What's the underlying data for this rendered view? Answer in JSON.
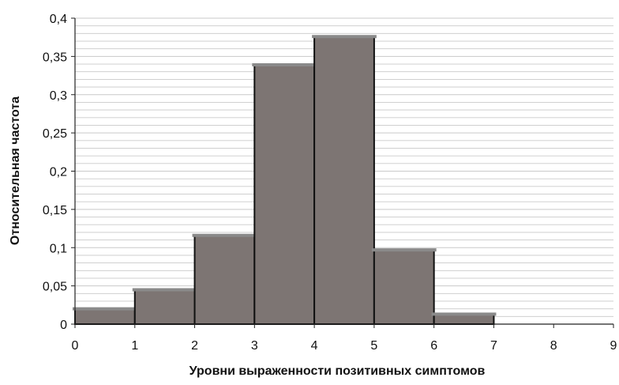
{
  "chart_data": {
    "type": "bar",
    "variant": "histogram",
    "title": "",
    "xlabel": "Уровни выраженности позитивных симптомов",
    "ylabel": "Относительная частота",
    "x_ticks": [
      "0",
      "1",
      "2",
      "3",
      "4",
      "5",
      "6",
      "7",
      "8",
      "9"
    ],
    "y_ticks": [
      "0",
      "0,05",
      "0,1",
      "0,15",
      "0,2",
      "0,25",
      "0,3",
      "0,35",
      "0,4"
    ],
    "xlim": [
      0,
      9
    ],
    "ylim": [
      0,
      0.4
    ],
    "bins": [
      {
        "x0": 0,
        "x1": 1,
        "value": 0.02
      },
      {
        "x0": 1,
        "x1": 2,
        "value": 0.045
      },
      {
        "x0": 2,
        "x1": 3,
        "value": 0.116
      },
      {
        "x0": 3,
        "x1": 4,
        "value": 0.339
      },
      {
        "x0": 4,
        "x1": 5,
        "value": 0.376
      },
      {
        "x0": 5,
        "x1": 6,
        "value": 0.097
      },
      {
        "x0": 6,
        "x1": 7,
        "value": 0.013
      }
    ],
    "grid": "horizontal-minor",
    "grid_step": 0.01,
    "legend": "none",
    "colors": {
      "bar_fill": "#7d7573",
      "bar_stroke": "#111111",
      "bar_cap": "#8a8a8a",
      "grid": "#c9c9c9",
      "axis": "#222222"
    }
  }
}
